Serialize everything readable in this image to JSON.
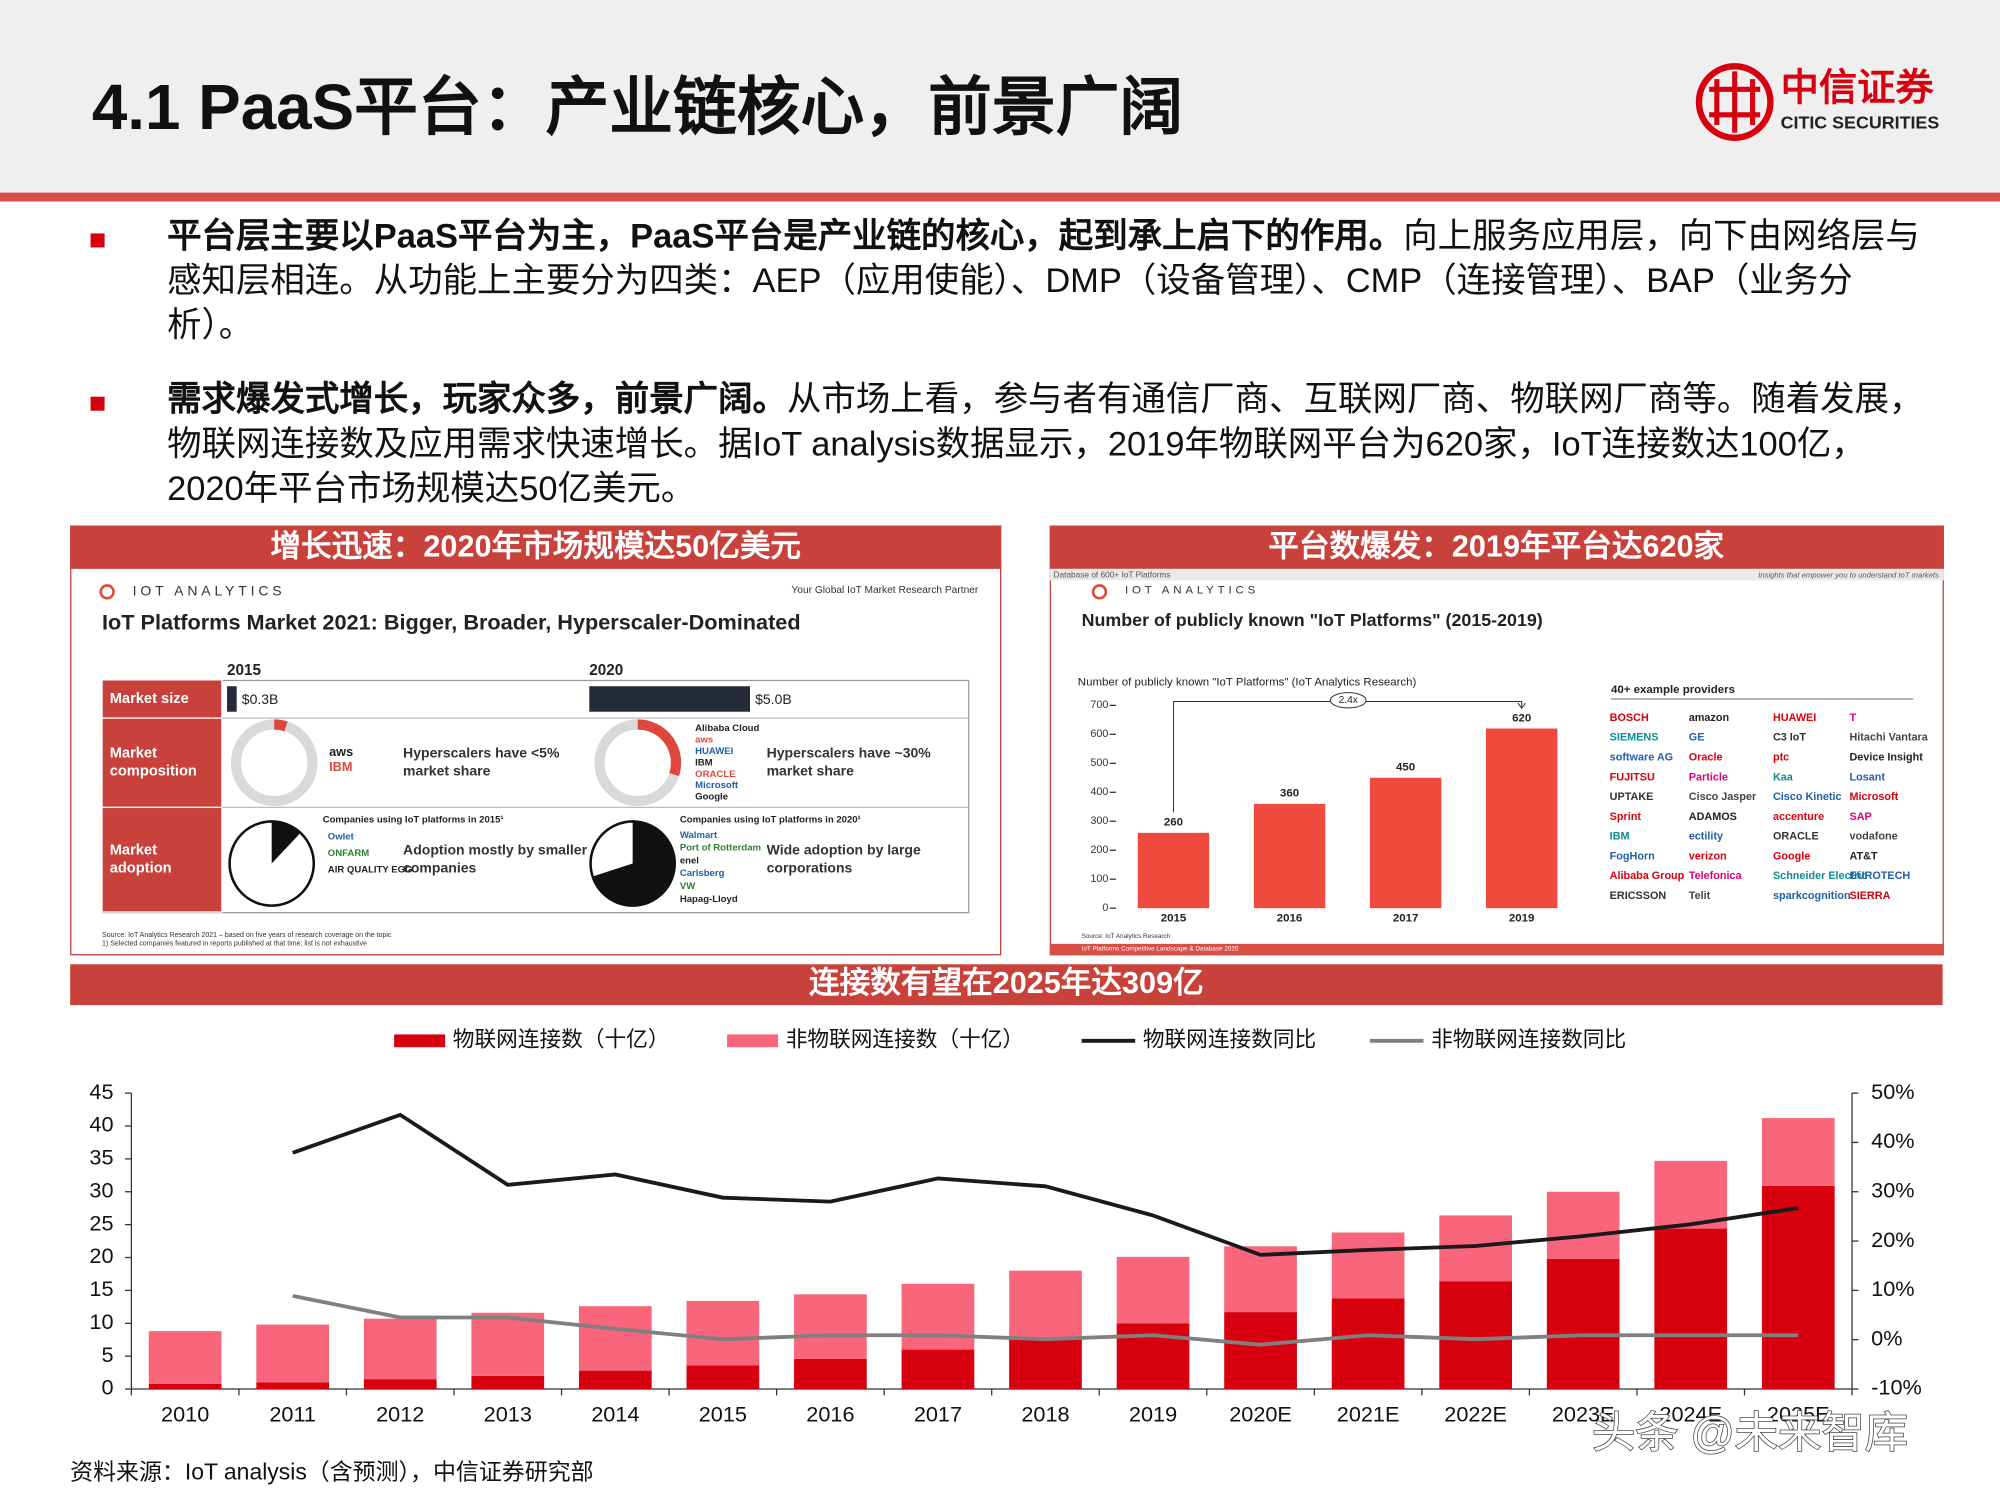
{
  "header": {
    "title": "4.1 PaaS平台：产业链核心，前景广阔",
    "logo_cn": "中信证券",
    "logo_en": "CITIC SECURITIES"
  },
  "bullets": [
    {
      "bold": "平台层主要以PaaS平台为主，PaaS平台是产业链的核心，起到承上启下的作用。",
      "text": "向上服务应用层，向下由网络层与感知层相连。从功能上主要分为四类：AEP（应用使能）、DMP（设备管理）、CMP（连接管理）、BAP（业务分析）。"
    },
    {
      "bold": "需求爆发式增长，玩家众多，前景广阔。",
      "text": "从市场上看，参与者有通信厂商、互联网厂商、物联网厂商等。随着发展，物联网连接数及应用需求快速增长。据IoT analysis数据显示，2019年物联网平台为620家，IoT连接数达100亿，2020年平台市场规模达50亿美元。"
    }
  ],
  "left_panel": {
    "heading": "增长迅速：2020年市场规模达50亿美元",
    "brand": "IOT ANALYTICS",
    "tagline": "Your Global IoT Market Research Partner",
    "title": "IoT Platforms Market 2021: Bigger, Broader, Hyperscaler-Dominated",
    "years": [
      "2015",
      "2020"
    ],
    "rows": [
      "Market size",
      "Market composition",
      "Market adoption"
    ],
    "market_size": {
      "values": [
        0.3,
        5.0
      ],
      "value_labels": [
        "$0.3B",
        "$5.0B"
      ]
    },
    "composition": {
      "hyperscaler_share": [
        5,
        30
      ],
      "notes": [
        "Hyperscalers have <5% market share",
        "Hyperscalers have ~30% market share"
      ],
      "logos_2015": [
        "aws",
        "IBM"
      ],
      "logos_2020": [
        "Alibaba Cloud",
        "aws",
        "HUAWEI",
        "IBM",
        "ORACLE",
        "Microsoft",
        "Google"
      ]
    },
    "adoption": {
      "captions": [
        "Companies using IoT platforms in 2015¹",
        "Companies using IoT platforms in 2020¹"
      ],
      "share": [
        12,
        70
      ],
      "notes": [
        "Adoption mostly by smaller companies",
        "Wide adoption by large corporations"
      ],
      "logos_2015": [
        "Owlet",
        "ONFARM",
        "AIR QUALITY EGG"
      ],
      "logos_2020": [
        "Walmart",
        "Port of Rotterdam",
        "enel",
        "Carlsberg",
        "VW",
        "Hapag-Lloyd"
      ]
    },
    "source": "Source: IoT Analytics Research 2021 – based on five years of research coverage on the topic",
    "footnote": "1) Selected companies featured in reports published at that time; list is not exhaustive"
  },
  "right_panel": {
    "heading": "平台数爆发：2019年平台达620家",
    "strip": "Database of 600+ IoT Platforms",
    "tagline": "Insights that empower you to understand IoT markets",
    "brand": "IOT ANALYTICS",
    "chart": {
      "type": "bar",
      "title": "Number of publicly known \"IoT Platforms\" (2015-2019)",
      "subtitle": "Number of publicly known \"IoT Platforms\" (IoT Analytics Research)",
      "categories": [
        "2015",
        "2016",
        "2017",
        "2019"
      ],
      "values": [
        260,
        360,
        450,
        620
      ],
      "color": "#f0493d",
      "ylim": [
        0,
        700
      ],
      "yticks": [
        0,
        100,
        200,
        300,
        400,
        500,
        600,
        700
      ],
      "annotation": "2.4x"
    },
    "providers_title": "40+ example providers",
    "providers": [
      "BOSCH",
      "amazon",
      "HUAWEI",
      "T",
      "SIEMENS",
      "GE",
      "C3 IoT",
      "Hitachi Vantara",
      "software AG",
      "Oracle",
      "ptc",
      "Device Insight",
      "FUJITSU",
      "Particle",
      "Kaa",
      "Losant",
      "UPTAKE",
      "Cisco Jasper",
      "Cisco Kinetic",
      "Microsoft",
      "Sprint",
      "ADAMOS",
      "accenture",
      "SAP",
      "IBM",
      "ectility",
      "ORACLE",
      "vodafone",
      "FogHorn",
      "verizon",
      "Google",
      "AT&T",
      "Alibaba Group",
      "Telefonica",
      "Schneider Electric",
      "EUROTECH",
      "ERICSSON",
      "Telit",
      "sparkcognition",
      "SIERRA"
    ],
    "source": "Source: IoT Analytics Research",
    "footer": "IoT Platforms Competitive Landscape & Database 2020"
  },
  "bottom_panel": {
    "heading": "连接数有望在2025年达309亿",
    "chart": {
      "type": "bar-line",
      "categories": [
        "2010",
        "2011",
        "2012",
        "2013",
        "2014",
        "2015",
        "2016",
        "2017",
        "2018",
        "2019",
        "2020E",
        "2021E",
        "2022E",
        "2023E",
        "2024E",
        "2025E"
      ],
      "series": [
        {
          "name": "物联网连接数（十亿）",
          "color": "#d7000f",
          "kind": "bar",
          "values": [
            0.8,
            1.0,
            1.5,
            2.0,
            2.8,
            3.6,
            4.6,
            6.0,
            7.8,
            10.0,
            11.7,
            13.8,
            16.4,
            19.8,
            24.4,
            30.9
          ]
        },
        {
          "name": "非物联网连接数（十亿）",
          "color": "#f9657a",
          "kind": "bar",
          "values": [
            8.0,
            8.8,
            9.2,
            9.6,
            9.8,
            9.8,
            9.8,
            10.0,
            10.2,
            10.1,
            10.0,
            10.0,
            10.0,
            10.2,
            10.3,
            10.3
          ]
        },
        {
          "name": "物联网连接数同比",
          "color": "#1a1a1a",
          "kind": "line",
          "axis": "y2",
          "values": [
            null,
            37.9,
            45.6,
            31.4,
            33.5,
            28.8,
            28.0,
            32.7,
            31.1,
            25.2,
            17.2,
            18.2,
            19.0,
            21.0,
            23.4,
            26.7
          ]
        },
        {
          "name": "非物联网连接数同比",
          "color": "#808080",
          "kind": "line",
          "axis": "y2",
          "values": [
            null,
            8.9,
            4.5,
            4.5,
            2.2,
            0.1,
            0.9,
            0.9,
            0.1,
            0.9,
            -1.0,
            0.9,
            0.1,
            0.9,
            0.9,
            0.9
          ]
        }
      ],
      "ylim": [
        0,
        45
      ],
      "yticks": [
        0,
        5,
        10,
        15,
        20,
        25,
        30,
        35,
        40,
        45
      ],
      "y2lim": [
        -10,
        50
      ],
      "y2ticks": [
        {
          "value": -10,
          "label": "-10%"
        },
        {
          "value": 0,
          "label": "0%"
        },
        {
          "value": 10,
          "label": "10%"
        },
        {
          "value": 20,
          "label": "20%"
        },
        {
          "value": 30,
          "label": "30%"
        },
        {
          "value": 40,
          "label": "40%"
        },
        {
          "value": 50,
          "label": "50%"
        }
      ]
    }
  },
  "source": "资料来源：IoT analysis（含预测），中信证券研究部",
  "watermark": "头条 @未来智库"
}
